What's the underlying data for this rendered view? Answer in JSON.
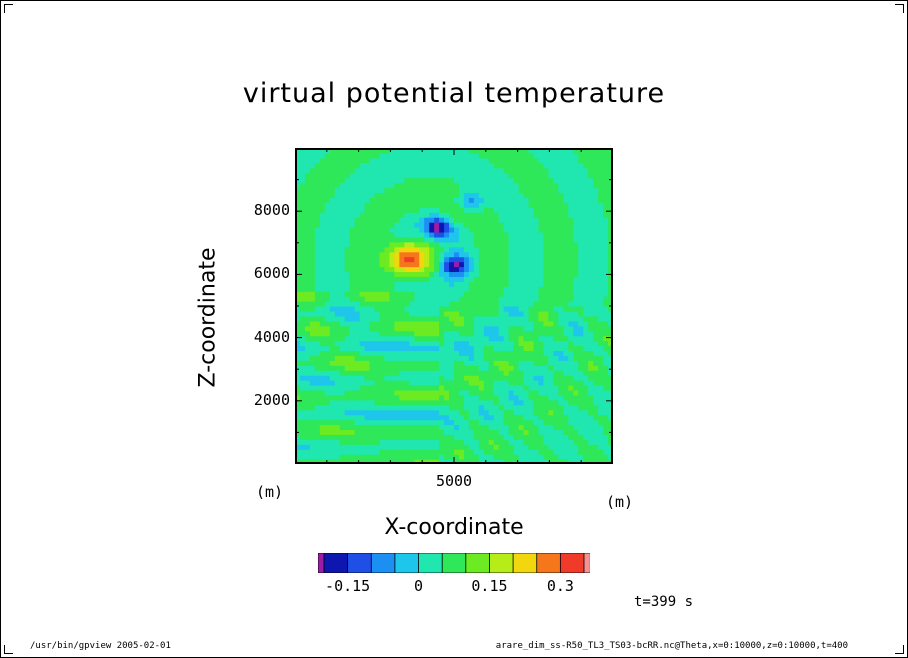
{
  "chart_data": {
    "type": "heatmap",
    "title": "virtual potential temperature",
    "xlabel": "X-coordinate",
    "ylabel": "Z-coordinate",
    "x_unit": "(m)",
    "y_unit": "(m)",
    "xlim": [
      0,
      10000
    ],
    "ylim": [
      0,
      10000
    ],
    "x_ticks": [
      5000
    ],
    "y_ticks": [
      2000,
      4000,
      6000,
      8000
    ],
    "colorbar": {
      "levels": [
        -0.2,
        -0.15,
        -0.1,
        -0.05,
        0,
        0.05,
        0.1,
        0.15,
        0.2,
        0.25,
        0.3,
        0.35
      ],
      "tick_labels": [
        "-0.15",
        "0",
        "0.15",
        "0.3"
      ],
      "tick_values": [
        -0.15,
        0,
        0.15,
        0.3
      ],
      "colors": [
        "#9c1ca8",
        "#0d17b0",
        "#1f4fe6",
        "#1c90f2",
        "#1fc6ec",
        "#20e6b0",
        "#2ee85a",
        "#6cea22",
        "#b6ec18",
        "#f2d60e",
        "#f5761b",
        "#f03a2a",
        "#f79090"
      ]
    },
    "features": [
      {
        "type": "max",
        "x": 3500,
        "z": 6500,
        "value": 0.33
      },
      {
        "type": "min",
        "x": 4500,
        "z": 7500,
        "value": -0.18
      },
      {
        "type": "min",
        "x": 5000,
        "z": 6300,
        "value": -0.17
      },
      {
        "type": "min",
        "x": 5500,
        "z": 8300,
        "value": -0.1
      },
      {
        "type": "max",
        "x": 5000,
        "z": 7900,
        "value": 0.1
      }
    ]
  },
  "annotation": {
    "time": "t=399 s"
  },
  "footer": {
    "left": "/usr/bin/gpview  2005-02-01",
    "right": "arare_dim_ss-R50_TL3_TS03-bcRR.nc@Theta,x=0:10000,z=0:10000,t=400"
  }
}
